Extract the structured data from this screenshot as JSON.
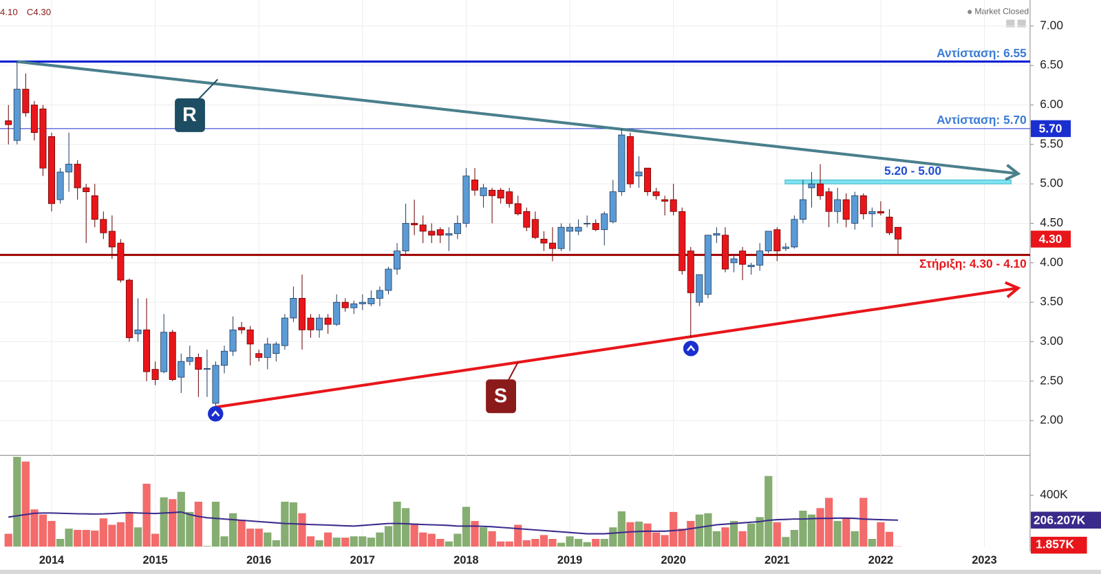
{
  "chart_data": {
    "type": "candlestick",
    "legend_low": "4.10",
    "legend_close": "C4.30",
    "market_status": "Market Closed",
    "close_tag": "4.30",
    "categories": [
      null,
      null,
      null,
      null,
      null,
      "2014",
      null,
      null,
      null,
      null,
      null,
      null,
      null,
      null,
      null,
      null,
      null,
      "2015",
      null,
      null,
      null,
      null,
      null,
      null,
      null,
      null,
      null,
      null,
      null,
      "2016",
      null,
      null,
      null,
      null,
      null,
      null,
      null,
      null,
      null,
      null,
      null,
      "2017",
      null,
      null,
      null,
      null,
      null,
      null,
      null,
      null,
      null,
      null,
      null,
      "2018",
      null,
      null,
      null,
      null,
      null,
      null,
      null,
      null,
      null,
      null,
      null,
      "2019",
      null,
      null,
      null,
      null,
      null,
      null,
      null,
      null,
      null,
      null,
      null,
      "2020",
      null,
      null,
      null,
      null,
      null,
      null,
      null,
      null,
      null,
      null,
      null,
      "2021",
      null,
      null,
      null,
      null,
      null,
      null,
      null,
      null,
      null,
      null,
      null,
      "2022",
      null,
      null,
      null,
      null,
      null,
      null,
      null,
      null,
      null,
      null,
      null,
      "2023"
    ],
    "open": [
      5.8,
      5.55,
      6.2,
      6.0,
      5.95,
      5.6,
      4.8,
      5.15,
      5.25,
      4.95,
      4.85,
      4.55,
      4.4,
      4.25,
      3.78,
      3.1,
      3.15,
      2.65,
      2.62,
      3.12,
      2.55,
      2.75,
      2.8,
      2.65,
      2.22,
      2.7,
      2.88,
      3.18,
      3.15,
      2.85,
      2.8,
      2.85,
      2.95,
      3.3,
      3.55,
      3.3,
      3.15,
      3.3,
      3.22,
      3.5,
      3.43,
      3.48,
      3.48,
      3.55,
      3.65,
      3.92,
      4.15,
      4.5,
      4.48,
      4.4,
      4.42,
      4.35,
      4.37,
      4.5,
      5.05,
      4.85,
      4.92,
      4.92,
      4.9,
      4.75,
      4.65,
      4.55,
      4.3,
      4.25,
      4.18,
      4.4,
      4.4,
      4.5,
      4.5,
      4.42,
      4.52,
      4.9,
      5.6,
      5.1,
      5.2,
      4.9,
      4.8,
      4.8,
      4.65,
      4.15,
      3.5,
      3.6,
      4.35,
      4.35,
      4.0,
      4.15,
      3.95,
      3.97,
      4.15,
      4.42,
      4.18,
      4.2,
      4.55,
      4.95,
      5.0,
      4.9,
      4.65,
      4.8,
      4.5,
      4.85,
      4.62,
      4.65,
      4.58,
      4.45,
      null,
      null,
      null,
      null,
      null,
      null,
      null,
      null,
      null,
      null
    ],
    "high": [
      6.0,
      6.55,
      6.4,
      6.05,
      6.0,
      5.65,
      5.2,
      5.65,
      5.3,
      5.0,
      5.0,
      4.65,
      4.6,
      4.3,
      3.8,
      3.55,
      3.55,
      2.75,
      3.35,
      3.15,
      2.85,
      2.95,
      2.85,
      2.9,
      2.75,
      2.95,
      3.32,
      3.25,
      3.2,
      2.9,
      3.05,
      3.0,
      3.35,
      3.7,
      3.85,
      3.35,
      3.35,
      3.35,
      3.6,
      3.55,
      3.52,
      3.6,
      3.65,
      3.7,
      3.95,
      4.25,
      4.75,
      4.8,
      4.6,
      4.5,
      4.45,
      4.45,
      4.6,
      5.2,
      5.2,
      5.0,
      4.95,
      4.95,
      4.95,
      4.85,
      4.7,
      4.65,
      4.4,
      4.45,
      4.5,
      4.5,
      4.55,
      4.6,
      4.55,
      4.65,
      5.05,
      5.7,
      5.65,
      5.35,
      5.2,
      4.95,
      4.85,
      5.0,
      4.7,
      4.2,
      3.85,
      4.35,
      4.45,
      4.45,
      4.1,
      4.2,
      4.0,
      4.25,
      4.4,
      4.45,
      4.25,
      4.6,
      5.05,
      5.15,
      5.25,
      4.95,
      4.95,
      4.88,
      4.9,
      4.88,
      4.7,
      4.78,
      4.68,
      4.45,
      null,
      null,
      null,
      null,
      null,
      null,
      null,
      null,
      null,
      null
    ],
    "low": [
      5.5,
      5.5,
      5.85,
      5.55,
      5.1,
      4.65,
      4.75,
      4.9,
      4.8,
      4.25,
      4.45,
      4.3,
      4.05,
      3.75,
      3.0,
      3.0,
      2.5,
      2.45,
      2.6,
      2.5,
      2.35,
      2.7,
      2.3,
      2.3,
      2.17,
      2.6,
      2.82,
      3.1,
      2.7,
      2.75,
      2.65,
      2.75,
      2.9,
      3.25,
      2.9,
      3.05,
      3.05,
      3.1,
      3.2,
      3.38,
      3.35,
      3.4,
      3.45,
      3.45,
      3.6,
      3.85,
      4.1,
      4.35,
      4.25,
      4.25,
      4.25,
      4.15,
      4.3,
      4.45,
      4.85,
      4.7,
      4.5,
      4.75,
      4.7,
      4.6,
      4.4,
      4.3,
      4.15,
      4.02,
      4.15,
      4.15,
      4.35,
      4.45,
      4.4,
      4.22,
      4.5,
      4.85,
      4.95,
      4.95,
      4.85,
      4.8,
      4.6,
      4.6,
      3.85,
      3.05,
      3.45,
      3.55,
      4.25,
      3.88,
      3.88,
      3.78,
      3.85,
      3.9,
      4.12,
      4.02,
      4.15,
      4.18,
      4.5,
      4.7,
      4.8,
      4.45,
      4.5,
      4.45,
      4.42,
      4.55,
      4.45,
      4.6,
      4.35,
      4.1,
      null,
      null,
      null,
      null,
      null,
      null,
      null,
      null,
      null,
      null
    ],
    "close": [
      5.75,
      6.2,
      5.9,
      5.65,
      5.2,
      4.75,
      5.15,
      5.25,
      4.95,
      4.9,
      4.55,
      4.38,
      4.2,
      3.78,
      3.05,
      3.15,
      2.62,
      2.52,
      3.12,
      2.52,
      2.75,
      2.8,
      2.65,
      2.66,
      2.7,
      2.88,
      3.15,
      3.15,
      2.97,
      2.8,
      2.97,
      2.97,
      3.3,
      3.55,
      3.15,
      3.15,
      3.3,
      3.22,
      3.5,
      3.43,
      3.48,
      3.5,
      3.55,
      3.65,
      3.92,
      4.15,
      4.5,
      4.48,
      4.4,
      4.35,
      4.35,
      4.37,
      4.5,
      5.1,
      4.92,
      4.95,
      4.85,
      4.82,
      4.75,
      4.62,
      4.45,
      4.32,
      4.25,
      4.18,
      4.45,
      4.45,
      4.45,
      4.5,
      4.42,
      4.62,
      4.9,
      5.62,
      5.0,
      5.15,
      4.9,
      4.85,
      4.78,
      4.65,
      3.9,
      3.62,
      3.85,
      4.35,
      4.37,
      3.92,
      4.05,
      3.98,
      3.97,
      4.15,
      4.4,
      4.15,
      4.2,
      4.55,
      4.8,
      5.0,
      4.85,
      4.65,
      4.8,
      4.55,
      4.85,
      4.62,
      4.65,
      4.63,
      4.38,
      4.3,
      null,
      null,
      null,
      null,
      null,
      null,
      null,
      null,
      null,
      null
    ],
    "up_color": "#5b9bd5",
    "down_color": "#e8161b",
    "ylim": [
      1.65,
      7.33
    ],
    "yticks": [
      {
        "value": 2,
        "label": "2.00"
      },
      {
        "value": 2.5,
        "label": "2.50"
      },
      {
        "value": 3,
        "label": "3.00"
      },
      {
        "value": 3.5,
        "label": "3.50"
      },
      {
        "value": 4,
        "label": "4.00"
      },
      {
        "value": 4.5,
        "label": "4.50"
      },
      {
        "value": 5,
        "label": "5.00"
      },
      {
        "value": 5.5,
        "label": "5.50"
      },
      {
        "value": 6,
        "label": "6.00"
      },
      {
        "value": 6.5,
        "label": "6.50"
      },
      {
        "value": 7,
        "label": "7.00"
      }
    ],
    "grid": true,
    "hlines": [
      {
        "value": 6.55,
        "label": "Αντίσταση: 6.55",
        "color": "#0a1fd4",
        "width": 3
      },
      {
        "value": 5.7,
        "label": "Αντίσταση: 5.70",
        "tag": "5.70",
        "color": "#1a2fd0",
        "width": 1
      },
      {
        "value": 4.1,
        "label": "Στήριξη: 4.30 - 4.10",
        "color": "#a00000",
        "width": 3
      }
    ],
    "zone": {
      "label": "5.20 - 5.00",
      "low": 5.0,
      "high": 5.05,
      "color": "#7fe3ef"
    },
    "trendlines": [
      {
        "label": "R",
        "color": "#4a7f8c",
        "start": 6.55,
        "end": 5.13
      },
      {
        "label": "S",
        "color": "#e8161b",
        "start": 2.17,
        "end": 3.68
      }
    ],
    "volume": {
      "values": [
        100,
        700,
        663,
        290,
        250,
        200,
        60,
        140,
        130,
        130,
        125,
        220,
        170,
        190,
        260,
        150,
        490,
        100,
        384,
        370,
        427,
        270,
        350,
        5,
        350,
        80,
        260,
        210,
        140,
        140,
        110,
        50,
        350,
        345,
        260,
        80,
        50,
        110,
        70,
        70,
        80,
        80,
        70,
        110,
        160,
        350,
        300,
        180,
        110,
        100,
        60,
        40,
        100,
        310,
        200,
        150,
        120,
        40,
        40,
        170,
        50,
        60,
        90,
        60,
        30,
        80,
        60,
        35,
        60,
        60,
        150,
        275,
        190,
        195,
        180,
        110,
        90,
        270,
        140,
        200,
        250,
        260,
        120,
        150,
        200,
        120,
        180,
        230,
        550,
        190,
        75,
        130,
        280,
        250,
        300,
        380,
        200,
        220,
        120,
        380,
        60,
        190,
        115,
        1.857,
        null,
        null,
        null,
        null,
        null,
        null,
        null,
        null,
        null,
        null
      ],
      "ma": [
        230,
        240,
        250,
        260,
        262,
        262,
        260,
        258,
        256,
        255,
        254,
        255,
        258,
        262,
        265,
        262,
        260,
        258,
        262,
        265,
        270,
        250,
        235,
        225,
        220,
        215,
        210,
        205,
        200,
        195,
        190,
        185,
        180,
        178,
        175,
        172,
        170,
        168,
        165,
        162,
        160,
        165,
        170,
        175,
        180,
        180,
        178,
        175,
        172,
        170,
        168,
        165,
        160,
        160,
        160,
        158,
        155,
        150,
        145,
        140,
        135,
        130,
        125,
        120,
        115,
        110,
        105,
        100,
        100,
        100,
        105,
        110,
        115,
        118,
        120,
        120,
        120,
        125,
        130,
        140,
        150,
        160,
        170,
        175,
        180,
        185,
        190,
        195,
        205,
        210,
        212,
        215,
        215,
        218,
        220,
        220,
        222,
        222,
        220,
        215,
        212,
        210,
        208,
        206.207,
        null,
        null,
        null,
        null,
        null,
        null,
        null,
        null,
        null,
        null
      ],
      "up_color": "#86ad72",
      "down_color": "#f36b6b",
      "ma_color": "#3a2a8c",
      "ylim": [
        0,
        701
      ],
      "yticks": [
        {
          "value": 400,
          "label": "400K"
        }
      ],
      "ma_tag": "206.207K",
      "last_tag": "1.857K"
    }
  }
}
